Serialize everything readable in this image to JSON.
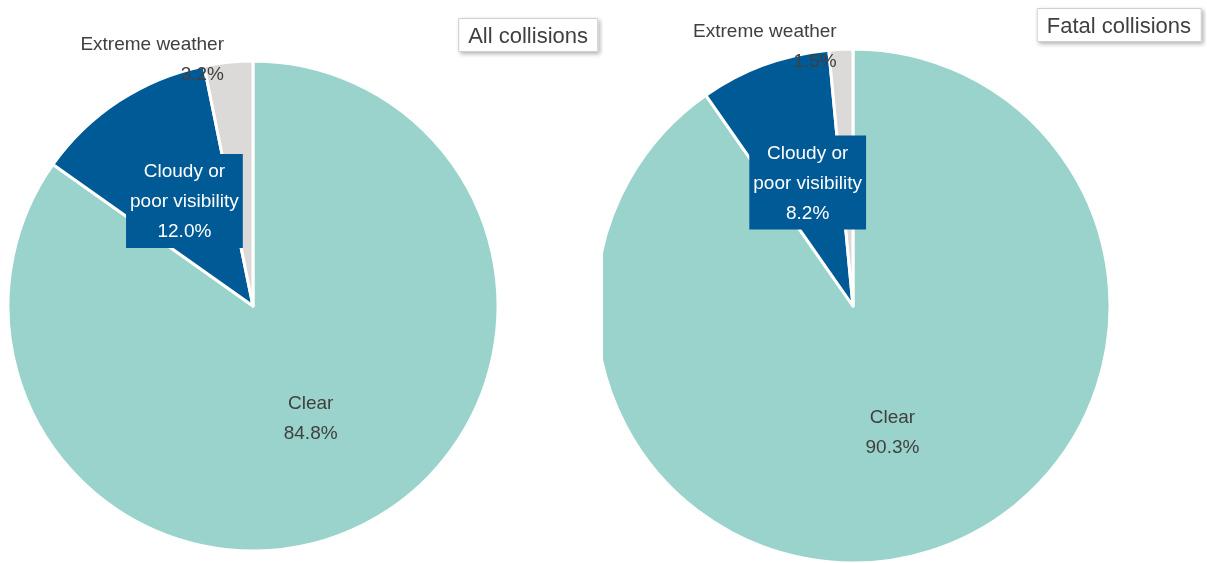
{
  "chart_data": [
    {
      "type": "pie",
      "title": "All collisions",
      "categories": [
        "Clear",
        "Cloudy or poor visibility",
        "Extreme weather"
      ],
      "values": [
        84.8,
        12.0,
        3.2
      ],
      "colors": [
        "#9ad3cb",
        "#005a96",
        "#dcdad8"
      ],
      "value_labels": [
        "84.8%",
        "12.0%",
        "3.2%"
      ]
    },
    {
      "type": "pie",
      "title": "Fatal collisions",
      "categories": [
        "Clear",
        "Cloudy or poor visibility",
        "Extreme weather"
      ],
      "values": [
        90.3,
        8.2,
        1.5
      ],
      "colors": [
        "#9ad3cb",
        "#005a96",
        "#dcdad8"
      ],
      "value_labels": [
        "90.3%",
        "8.2%",
        "1.5%"
      ]
    }
  ]
}
